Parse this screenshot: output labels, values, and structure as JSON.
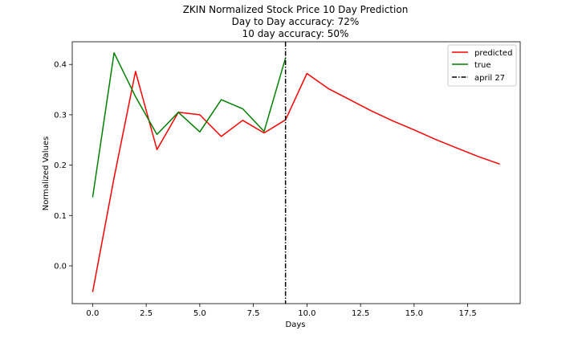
{
  "chart_data": {
    "type": "line",
    "title_lines": [
      "ZKIN Normalized Stock Price 10 Day Prediction",
      "Day to Day accuracy: 72%",
      "10 day accuracy: 50%"
    ],
    "xlabel": "Days",
    "ylabel": "Normalized Values",
    "xlim": [
      -0.95,
      19.95
    ],
    "ylim": [
      -0.075,
      0.445
    ],
    "xticks": [
      0.0,
      2.5,
      5.0,
      7.5,
      10.0,
      12.5,
      15.0,
      17.5
    ],
    "xtick_labels": [
      "0.0",
      "2.5",
      "5.0",
      "7.5",
      "10.0",
      "12.5",
      "15.0",
      "17.5"
    ],
    "yticks": [
      0.0,
      0.1,
      0.2,
      0.3,
      0.4
    ],
    "ytick_labels": [
      "0.0",
      "0.1",
      "0.2",
      "0.3",
      "0.4"
    ],
    "series": [
      {
        "name": "predicted",
        "color": "#ff0000",
        "x": [
          0,
          1,
          2,
          3,
          4,
          5,
          6,
          7,
          8,
          9,
          10,
          11,
          12,
          13,
          14,
          15,
          16,
          17,
          18,
          19
        ],
        "y": [
          -0.052,
          0.175,
          0.386,
          0.231,
          0.305,
          0.3,
          0.257,
          0.289,
          0.264,
          0.29,
          0.382,
          0.352,
          0.33,
          0.308,
          0.288,
          0.27,
          0.251,
          0.234,
          0.217,
          0.202
        ]
      },
      {
        "name": "true",
        "color": "#008000",
        "x": [
          0,
          1,
          2,
          3,
          4,
          5,
          6,
          7,
          8,
          9
        ],
        "y": [
          0.136,
          0.423,
          0.336,
          0.261,
          0.305,
          0.266,
          0.33,
          0.312,
          0.267,
          0.413
        ]
      }
    ],
    "vline": {
      "name": "april 27",
      "x": 9,
      "color": "#000000",
      "style": "dash-dot"
    },
    "legend_position": "top-right",
    "grid": false
  }
}
